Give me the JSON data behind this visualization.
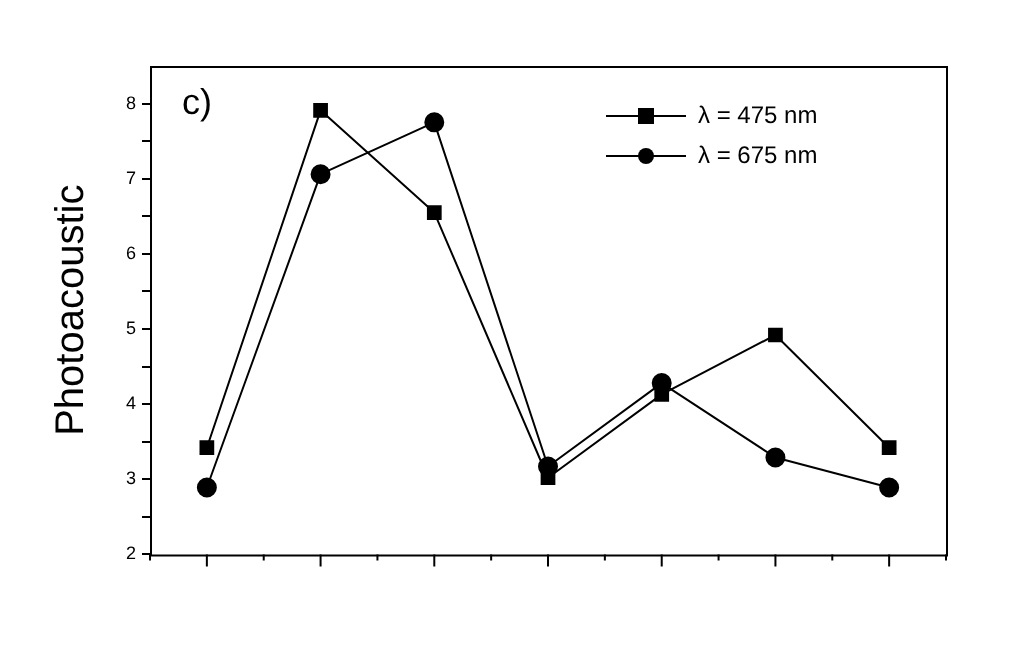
{
  "chart_data": {
    "type": "line",
    "ylabel": "Photoacoustic",
    "annotations": [
      "c)"
    ],
    "categories": [
      null,
      null,
      null,
      null,
      null,
      null,
      null
    ],
    "series": [
      {
        "name": "λ = 475 nm",
        "color": "#000000",
        "marker": "square",
        "values": [
          3.42,
          7.91,
          6.55,
          3.02,
          4.13,
          4.92,
          3.42
        ]
      },
      {
        "name": "λ = 675 nm",
        "color": "#000000",
        "marker": "circle",
        "values": [
          2.89,
          7.06,
          7.75,
          3.17,
          4.28,
          3.29,
          2.89
        ]
      }
    ],
    "ylim": [
      2,
      8.5
    ],
    "yticks": [
      2,
      {
        "value": 2.5,
        "label": null
      },
      3,
      {
        "value": 3.5,
        "label": null
      },
      4,
      {
        "value": 4.5,
        "label": null
      },
      5,
      {
        "value": 5.5,
        "label": null
      },
      6,
      {
        "value": 6.5,
        "label": null
      },
      7,
      {
        "value": 7.5,
        "label": null
      },
      8
    ],
    "grid": false,
    "legend": "top right",
    "line_style": "solid"
  }
}
